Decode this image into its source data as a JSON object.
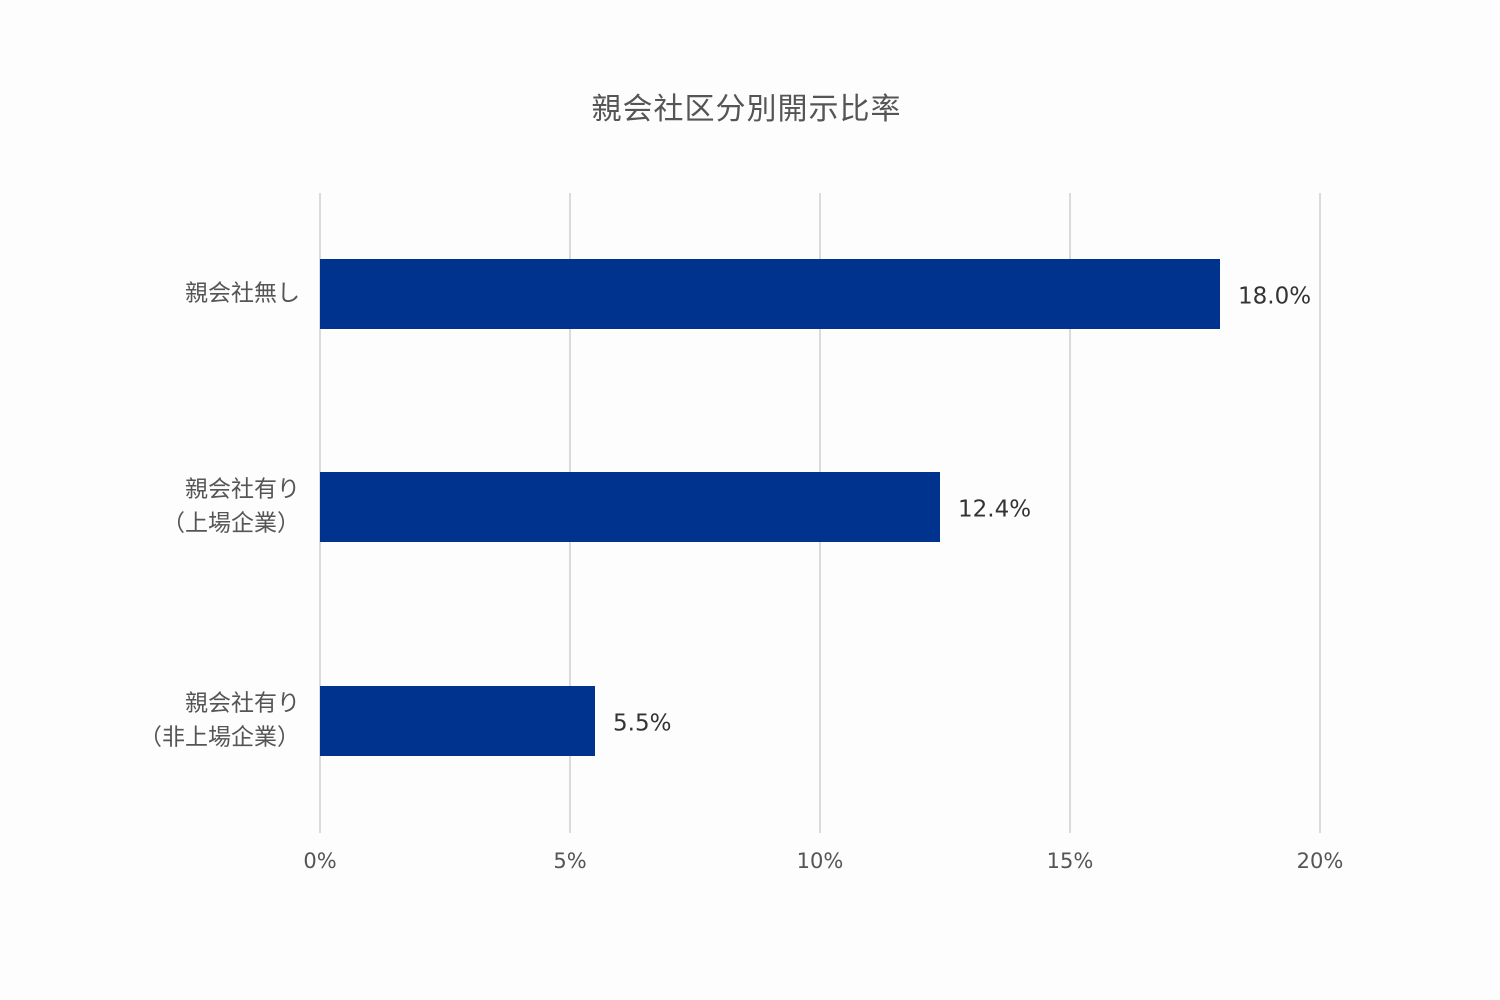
{
  "chart_data": {
    "type": "bar",
    "orientation": "horizontal",
    "title": "親会社区分別開示比率",
    "categories": [
      [
        "親会社無し"
      ],
      [
        "親会社有り",
        "（上場企業）"
      ],
      [
        "親会社有り",
        "（非上場企業）"
      ]
    ],
    "values": [
      18.0,
      12.4,
      5.5
    ],
    "value_labels": [
      "18.0%",
      "12.4%",
      "5.5%"
    ],
    "xlim": [
      0,
      20
    ],
    "xticks": [
      0,
      5,
      10,
      15,
      20
    ],
    "xtick_labels": [
      "0%",
      "5%",
      "10%",
      "15%",
      "20%"
    ],
    "xlabel": "",
    "ylabel": "",
    "grid": true,
    "legend": "none",
    "colors": {
      "bar": "#00338d",
      "grid": "#d0d0d0",
      "text": "#555555",
      "value_text": "#333333",
      "background": "#fdfdfd"
    }
  }
}
